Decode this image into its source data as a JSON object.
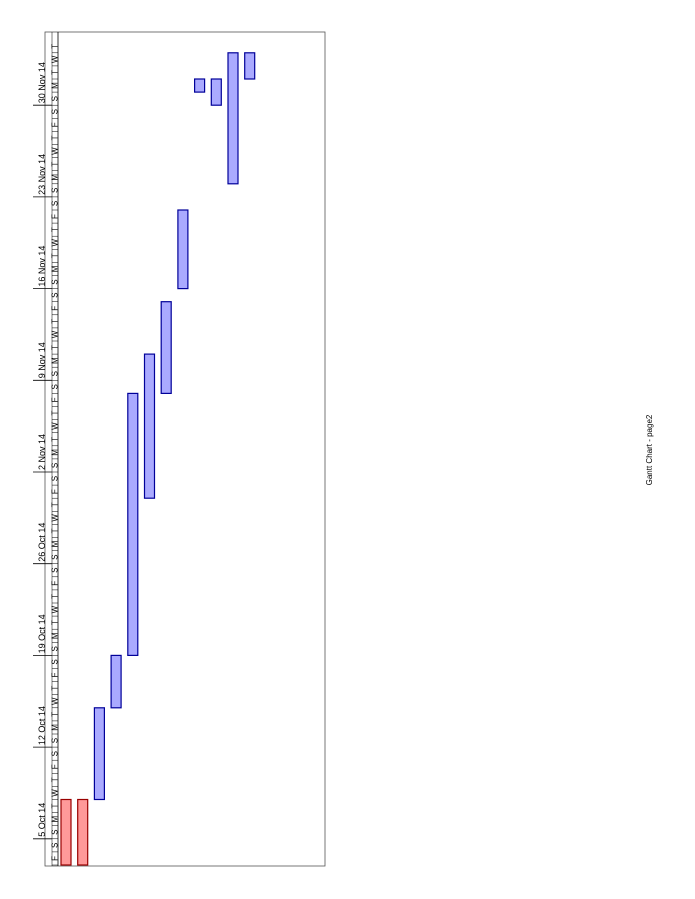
{
  "page": {
    "footer": "Gantt Chart - page2"
  },
  "colors": {
    "task_fill": "#aaaaff",
    "task_stroke": "#000099",
    "milestone_fill": "#ff9999",
    "milestone_stroke": "#990000",
    "grid": "#000000"
  },
  "chart_data": {
    "type": "gantt",
    "orientation": "rotated-90",
    "timeline_start": "2014-10-03",
    "timeline_end": "2014-12-04",
    "week_labels": [
      "5 Oct 14",
      "12 Oct 14",
      "19 Oct 14",
      "26 Oct 14",
      "2 Nov 14",
      "9 Nov 14",
      "16 Nov 14",
      "23 Nov 14",
      "30 Nov 14"
    ],
    "week_starts": [
      "2014-10-05",
      "2014-10-12",
      "2014-10-19",
      "2014-10-26",
      "2014-11-02",
      "2014-11-09",
      "2014-11-16",
      "2014-11-23",
      "2014-11-30"
    ],
    "day_letters": [
      "S",
      "M",
      "T",
      "W",
      "T",
      "F",
      "S"
    ],
    "tasks": [
      {
        "start": "2014-10-03",
        "end": "2014-10-08",
        "kind": "red"
      },
      {
        "start": "2014-10-03",
        "end": "2014-10-08",
        "kind": "red"
      },
      {
        "start": "2014-10-08",
        "end": "2014-10-15",
        "kind": "blue"
      },
      {
        "start": "2014-10-15",
        "end": "2014-10-19",
        "kind": "blue"
      },
      {
        "start": "2014-10-19",
        "end": "2014-11-08",
        "kind": "blue"
      },
      {
        "start": "2014-10-31",
        "end": "2014-11-11",
        "kind": "blue"
      },
      {
        "start": "2014-11-08",
        "end": "2014-11-15",
        "kind": "blue"
      },
      {
        "start": "2014-11-16",
        "end": "2014-11-22",
        "kind": "blue"
      },
      {
        "start": "2014-12-01",
        "end": "2014-12-02",
        "kind": "blue"
      },
      {
        "start": "2014-11-30",
        "end": "2014-12-02",
        "kind": "blue"
      },
      {
        "start": "2014-11-24",
        "end": "2014-12-04",
        "kind": "blue"
      },
      {
        "start": "2014-12-02",
        "end": "2014-12-04",
        "kind": "blue"
      }
    ]
  }
}
